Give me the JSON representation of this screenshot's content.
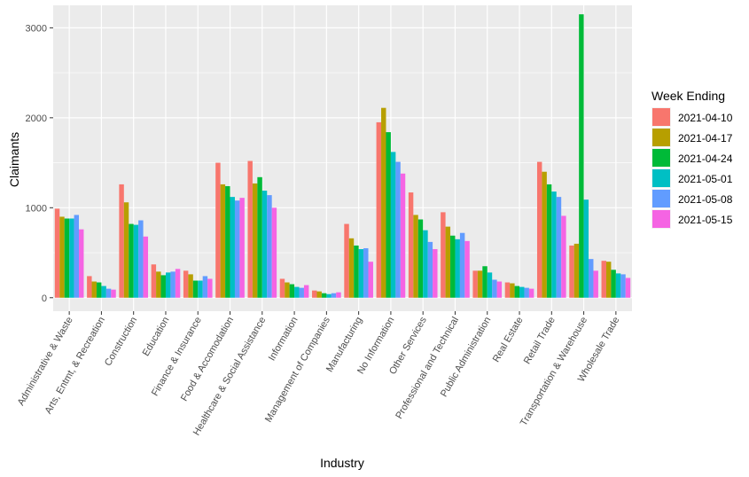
{
  "chart_data": {
    "type": "bar",
    "title": "",
    "xlabel": "Industry",
    "ylabel": "Claimants",
    "ylim": [
      -150,
      3250
    ],
    "yticks": [
      0,
      1000,
      2000,
      3000
    ],
    "grid": true,
    "legend": {
      "title": "Week Ending",
      "position": "right"
    },
    "categories": [
      "Administrative & Waste",
      "Arts, Entmt, & Recreation",
      "Construction",
      "Education",
      "Finance & Insurance",
      "Food & Accomodation",
      "Healthcare & Social Assistance",
      "Information",
      "Management of Companies",
      "Manufacturing",
      "No Information",
      "Other Services",
      "Professional and Technical",
      "Public Administration",
      "Real Estate",
      "Retail Trade",
      "Transportation & Warehouse",
      "Wholesale Trade"
    ],
    "series": [
      {
        "name": "2021-04-10",
        "color": "#F8766D",
        "values": [
          990,
          240,
          1260,
          370,
          300,
          1500,
          1520,
          210,
          80,
          820,
          1950,
          1170,
          950,
          300,
          170,
          1510,
          580,
          410
        ]
      },
      {
        "name": "2021-04-17",
        "color": "#B79F00",
        "values": [
          900,
          180,
          1060,
          290,
          260,
          1260,
          1270,
          170,
          70,
          660,
          2110,
          920,
          790,
          300,
          160,
          1400,
          600,
          400
        ]
      },
      {
        "name": "2021-04-24",
        "color": "#00BA38",
        "values": [
          880,
          170,
          820,
          250,
          190,
          1240,
          1340,
          150,
          50,
          580,
          1840,
          870,
          690,
          350,
          130,
          1260,
          3150,
          310
        ]
      },
      {
        "name": "2021-05-01",
        "color": "#00BFC4",
        "values": [
          880,
          130,
          810,
          280,
          190,
          1120,
          1190,
          120,
          40,
          540,
          1620,
          750,
          650,
          280,
          120,
          1180,
          1090,
          270
        ]
      },
      {
        "name": "2021-05-08",
        "color": "#619CFF",
        "values": [
          920,
          100,
          860,
          290,
          240,
          1080,
          1140,
          110,
          50,
          550,
          1510,
          620,
          720,
          200,
          110,
          1120,
          430,
          260
        ]
      },
      {
        "name": "2021-05-15",
        "color": "#F564E3",
        "values": [
          760,
          90,
          680,
          320,
          210,
          1110,
          1000,
          140,
          60,
          400,
          1380,
          540,
          630,
          180,
          100,
          910,
          300,
          220
        ]
      }
    ]
  }
}
